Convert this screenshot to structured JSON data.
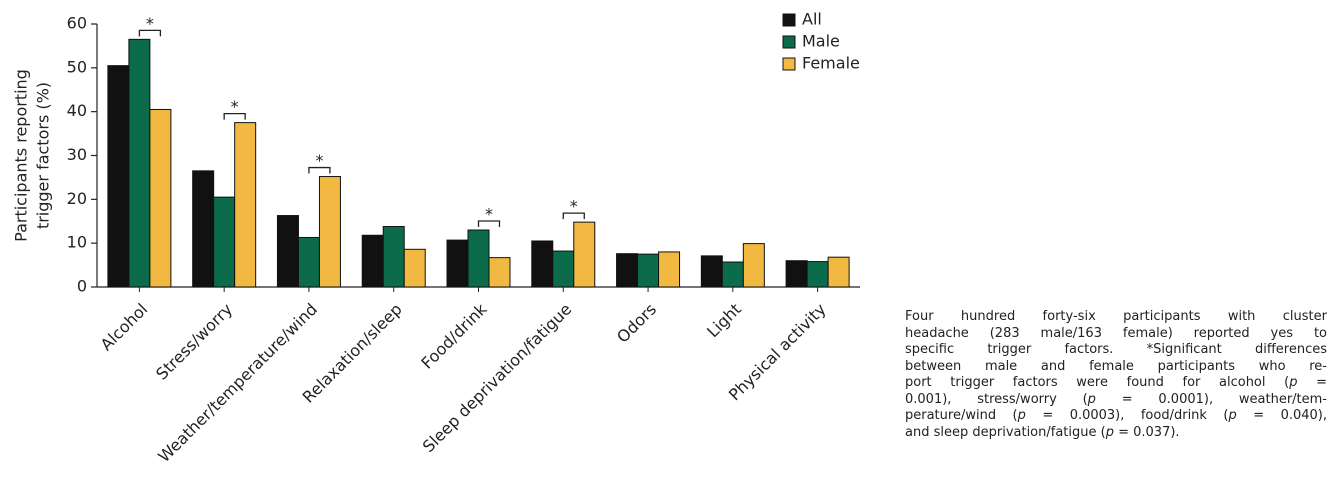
{
  "chart_data": {
    "type": "bar",
    "ylabel": [
      "Participants reporting",
      "trigger factors (%)"
    ],
    "categories": [
      "Alcohol",
      "Stress/worry",
      "Weather/temperature/wind",
      "Relaxation/sleep",
      "Food/drink",
      "Sleep deprivation/fatigue",
      "Odors",
      "Light",
      "Physical activity"
    ],
    "series": [
      {
        "name": "All",
        "color": "#111111",
        "values": [
          50.5,
          26.5,
          16.3,
          11.8,
          10.7,
          10.5,
          7.6,
          7.1,
          6.0
        ]
      },
      {
        "name": "Male",
        "color": "#0b6b4b",
        "values": [
          56.5,
          20.5,
          11.3,
          13.8,
          13.0,
          8.2,
          7.5,
          5.7,
          5.8
        ]
      },
      {
        "name": "Female",
        "color": "#f2b942",
        "values": [
          40.5,
          37.5,
          25.2,
          8.6,
          6.7,
          14.8,
          8.0,
          9.9,
          6.8
        ]
      }
    ],
    "significant": [
      true,
      true,
      true,
      false,
      true,
      true,
      false,
      false,
      false
    ],
    "significance_label": "*",
    "ylim": [
      0,
      60
    ],
    "yticks": [
      0,
      10,
      20,
      30,
      40,
      50,
      60
    ],
    "grid": false,
    "legend": "top-right"
  },
  "caption": {
    "lines": [
      [
        {
          "text": "Four hundred forty-six participants with cluster"
        }
      ],
      [
        {
          "text": "headache (283 male/163 female) reported yes to"
        }
      ],
      [
        {
          "text": "specific trigger factors. *Significant differences"
        }
      ],
      [
        {
          "text": "between male and female participants who re-"
        }
      ],
      [
        {
          "text": "port trigger factors were found for alcohol ("
        },
        {
          "text": "p",
          "italic": true
        },
        {
          "text": " ="
        }
      ],
      [
        {
          "text": "0.001), stress/worry ("
        },
        {
          "text": "p",
          "italic": true
        },
        {
          "text": " = 0.0001), weather/tem-"
        }
      ],
      [
        {
          "text": "perature/wind ("
        },
        {
          "text": "p",
          "italic": true
        },
        {
          "text": " = 0.0003), food/drink ("
        },
        {
          "text": "p",
          "italic": true
        },
        {
          "text": " = 0.040),"
        }
      ],
      [
        {
          "text": "and sleep deprivation/fatigue ("
        },
        {
          "text": "p",
          "italic": true
        },
        {
          "text": " = 0.037)."
        }
      ]
    ]
  }
}
